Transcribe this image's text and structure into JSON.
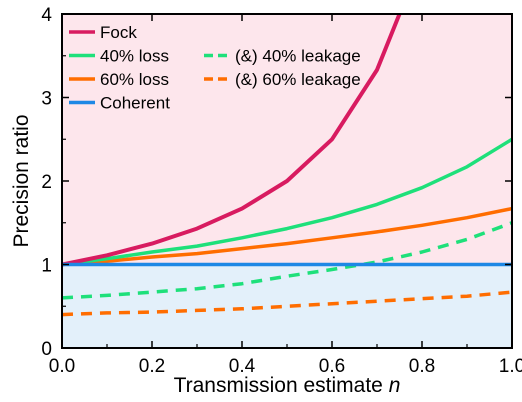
{
  "chart_data": {
    "type": "line",
    "xlabel": "Transmission estimate",
    "xlabel_var": "n",
    "ylabel": "Precision ratio",
    "xlim": [
      0.0,
      1.0
    ],
    "ylim": [
      0,
      4
    ],
    "xticks": [
      "0.0",
      "0.2",
      "0.4",
      "0.6",
      "0.8",
      "1.0"
    ],
    "yticks": [
      "0",
      "1",
      "2",
      "3",
      "4"
    ],
    "grid": false,
    "legend_placement": "top-left",
    "shaded_regions": [
      {
        "region": "above-coherent",
        "color": "#fde6ec"
      },
      {
        "region": "below-coherent",
        "color": "#e3f0fa"
      }
    ],
    "series": [
      {
        "name": "Fock",
        "color": "#d81b60",
        "style": "solid",
        "x": [
          0.0,
          0.1,
          0.2,
          0.3,
          0.4,
          0.5,
          0.6,
          0.7,
          0.75
        ],
        "y": [
          1.0,
          1.11,
          1.25,
          1.43,
          1.67,
          2.0,
          2.5,
          3.33,
          4.0
        ]
      },
      {
        "name": "40% loss",
        "color": "#1ee07a",
        "style": "solid",
        "x": [
          0.0,
          0.1,
          0.2,
          0.3,
          0.4,
          0.5,
          0.6,
          0.7,
          0.8,
          0.9,
          1.0
        ],
        "y": [
          1.0,
          1.07,
          1.15,
          1.22,
          1.32,
          1.43,
          1.56,
          1.72,
          1.92,
          2.17,
          2.5
        ]
      },
      {
        "name": "(&) 40% leakage",
        "color": "#1ee07a",
        "style": "dashed",
        "x": [
          0.0,
          0.1,
          0.2,
          0.3,
          0.4,
          0.5,
          0.6,
          0.7,
          0.8,
          0.9,
          1.0
        ],
        "y": [
          0.6,
          0.63,
          0.67,
          0.71,
          0.77,
          0.86,
          0.94,
          1.03,
          1.15,
          1.3,
          1.5
        ]
      },
      {
        "name": "60% loss",
        "color": "#ff6d00",
        "style": "solid",
        "x": [
          0.0,
          0.1,
          0.2,
          0.3,
          0.4,
          0.5,
          0.6,
          0.7,
          0.8,
          0.9,
          1.0
        ],
        "y": [
          1.0,
          1.04,
          1.09,
          1.13,
          1.19,
          1.25,
          1.32,
          1.39,
          1.47,
          1.56,
          1.67
        ]
      },
      {
        "name": "(&) 60% leakage",
        "color": "#ff6d00",
        "style": "dashed",
        "x": [
          0.0,
          0.1,
          0.2,
          0.3,
          0.4,
          0.5,
          0.6,
          0.7,
          0.8,
          0.9,
          1.0
        ],
        "y": [
          0.4,
          0.42,
          0.43,
          0.45,
          0.47,
          0.5,
          0.53,
          0.56,
          0.59,
          0.62,
          0.67
        ]
      },
      {
        "name": "Coherent",
        "color": "#1e88e5",
        "style": "solid",
        "x": [
          0.0,
          1.0
        ],
        "y": [
          1.0,
          1.0
        ]
      }
    ],
    "legend": [
      [
        "Fock"
      ],
      [
        "40% loss",
        "(&) 40% leakage"
      ],
      [
        "60% loss",
        "(&) 60% leakage"
      ],
      [
        "Coherent"
      ]
    ]
  }
}
